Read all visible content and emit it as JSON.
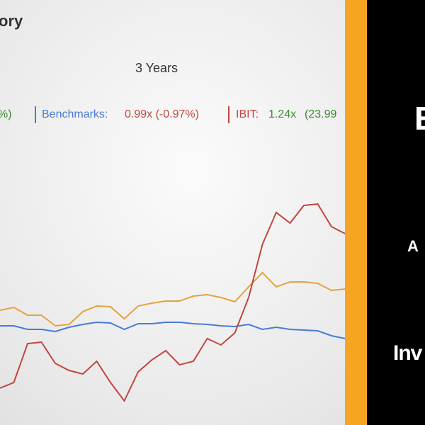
{
  "chart_data": {
    "type": "line",
    "title": "ory",
    "subtitle": "3 Years",
    "x": [
      0,
      1,
      2,
      3,
      4,
      5,
      6,
      7,
      8,
      9,
      10,
      11,
      12,
      13,
      14,
      15,
      16,
      17,
      18,
      19,
      20,
      21,
      22,
      23,
      24,
      25
    ],
    "xlim": [
      0,
      25
    ],
    "ylim": [
      0,
      600
    ],
    "series": [
      {
        "name": null,
        "summary": "%)",
        "color": "#e5a23f",
        "values": [
          162,
          166,
          155,
          155,
          140,
          142,
          160,
          168,
          167,
          150,
          168,
          172,
          175,
          175,
          182,
          184,
          180,
          174,
          195,
          215,
          195,
          202,
          202,
          200,
          190,
          192
        ]
      },
      {
        "name": "Benchmarks:",
        "summary": "0.99x (-0.97%)",
        "color": "#4a7bd6",
        "values": [
          140,
          140,
          135,
          135,
          132,
          138,
          142,
          145,
          144,
          135,
          143,
          143,
          145,
          145,
          143,
          142,
          140,
          139,
          142,
          135,
          138,
          135,
          134,
          133,
          126,
          122
        ]
      },
      {
        "name": "IBIT:",
        "summary": "1.24x",
        "change": "(23.99",
        "color": "#c0463f",
        "values": [
          52,
          60,
          115,
          117,
          87,
          77,
          72,
          90,
          60,
          34,
          75,
          92,
          105,
          85,
          90,
          122,
          113,
          130,
          180,
          255,
          300,
          285,
          310,
          312,
          280,
          270
        ]
      }
    ]
  },
  "panel": {
    "texts": [
      "E",
      "A",
      "Inv"
    ]
  }
}
